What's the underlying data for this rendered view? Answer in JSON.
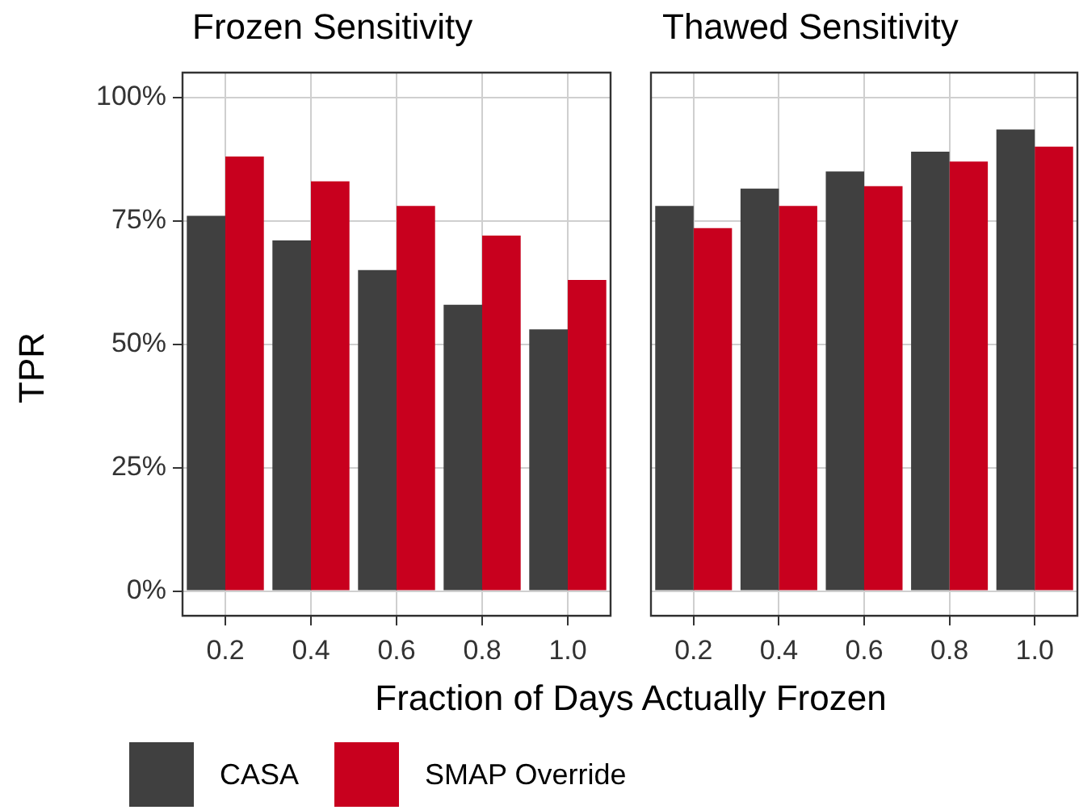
{
  "chart_data": [
    {
      "type": "bar",
      "title": "Frozen Sensitivity",
      "xlabel": "Fraction of Days Actually Frozen",
      "ylabel": "TPR",
      "categories": [
        "0.2",
        "0.4",
        "0.6",
        "0.8",
        "1.0"
      ],
      "series": [
        {
          "name": "CASA",
          "color": "#404040",
          "values": [
            76,
            71,
            65,
            58,
            53
          ]
        },
        {
          "name": "SMAP Override",
          "color": "#c8001e",
          "values": [
            88,
            83,
            78,
            72,
            63
          ]
        }
      ],
      "ylim": [
        -5,
        105
      ],
      "yticks": [
        {
          "value": 0,
          "label": "0%"
        },
        {
          "value": 25,
          "label": "25%"
        },
        {
          "value": 50,
          "label": "50%"
        },
        {
          "value": 75,
          "label": "75%"
        },
        {
          "value": 100,
          "label": "100%"
        }
      ],
      "grid": true,
      "legend": "bottom"
    },
    {
      "type": "bar",
      "title": "Thawed Sensitivity",
      "categories": [
        "0.2",
        "0.4",
        "0.6",
        "0.8",
        "1.0"
      ],
      "series": [
        {
          "color": "#404040",
          "values": [
            78,
            81.5,
            85,
            89,
            93.5
          ]
        },
        {
          "color": "#c8001e",
          "values": [
            73.5,
            78,
            82,
            87,
            90
          ]
        }
      ],
      "ylim": [
        -5,
        105
      ],
      "yticks": [
        0,
        25,
        50,
        75,
        100
      ],
      "grid": true,
      "tick_labels": "x"
    }
  ]
}
